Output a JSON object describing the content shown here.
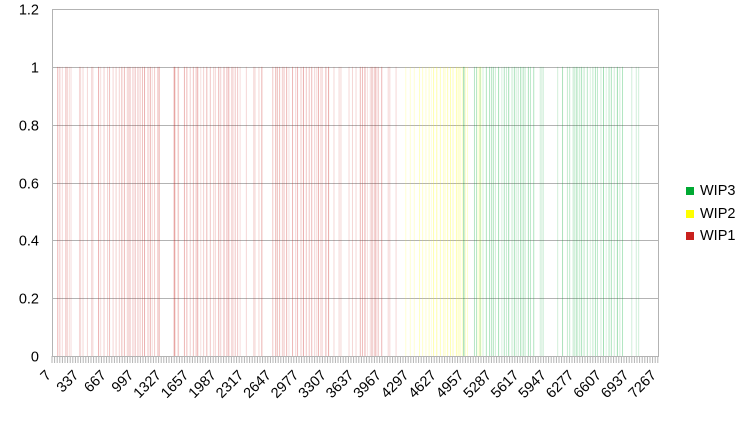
{
  "chart_data": {
    "type": "bar",
    "title": "",
    "xlabel": "",
    "ylabel": "",
    "ylim": [
      0,
      1.2
    ],
    "y_ticks": [
      "0",
      "0.2",
      "0.4",
      "0.6",
      "0.8",
      "1",
      "1.2"
    ],
    "x_range": [
      7,
      7290
    ],
    "x_tick_labels": [
      "7",
      "337",
      "667",
      "997",
      "1327",
      "1657",
      "1987",
      "2317",
      "2647",
      "2977",
      "3307",
      "3637",
      "3967",
      "4297",
      "4627",
      "4957",
      "5287",
      "5617",
      "5947",
      "6277",
      "6607",
      "6937",
      "7267"
    ],
    "grid": true,
    "legend_position": "right",
    "series": [
      {
        "name": "WIP3",
        "color": "#00a933",
        "value": 1,
        "x_ranges": [
          [
            5070,
            5800
          ],
          [
            6185,
            6880
          ]
        ]
      },
      {
        "name": "WIP2",
        "color": "#ffff00",
        "value": 1,
        "x_ranges": [
          [
            4410,
            5000
          ]
        ]
      },
      {
        "name": "WIP1",
        "color": "#c9211e",
        "value": 1,
        "x_ranges": [
          [
            70,
            240
          ],
          [
            560,
            1310
          ],
          [
            1590,
            2280
          ],
          [
            2650,
            3320
          ],
          [
            3700,
            3980
          ]
        ]
      }
    ],
    "legend": [
      "WIP3",
      "WIP2",
      "WIP1"
    ]
  }
}
